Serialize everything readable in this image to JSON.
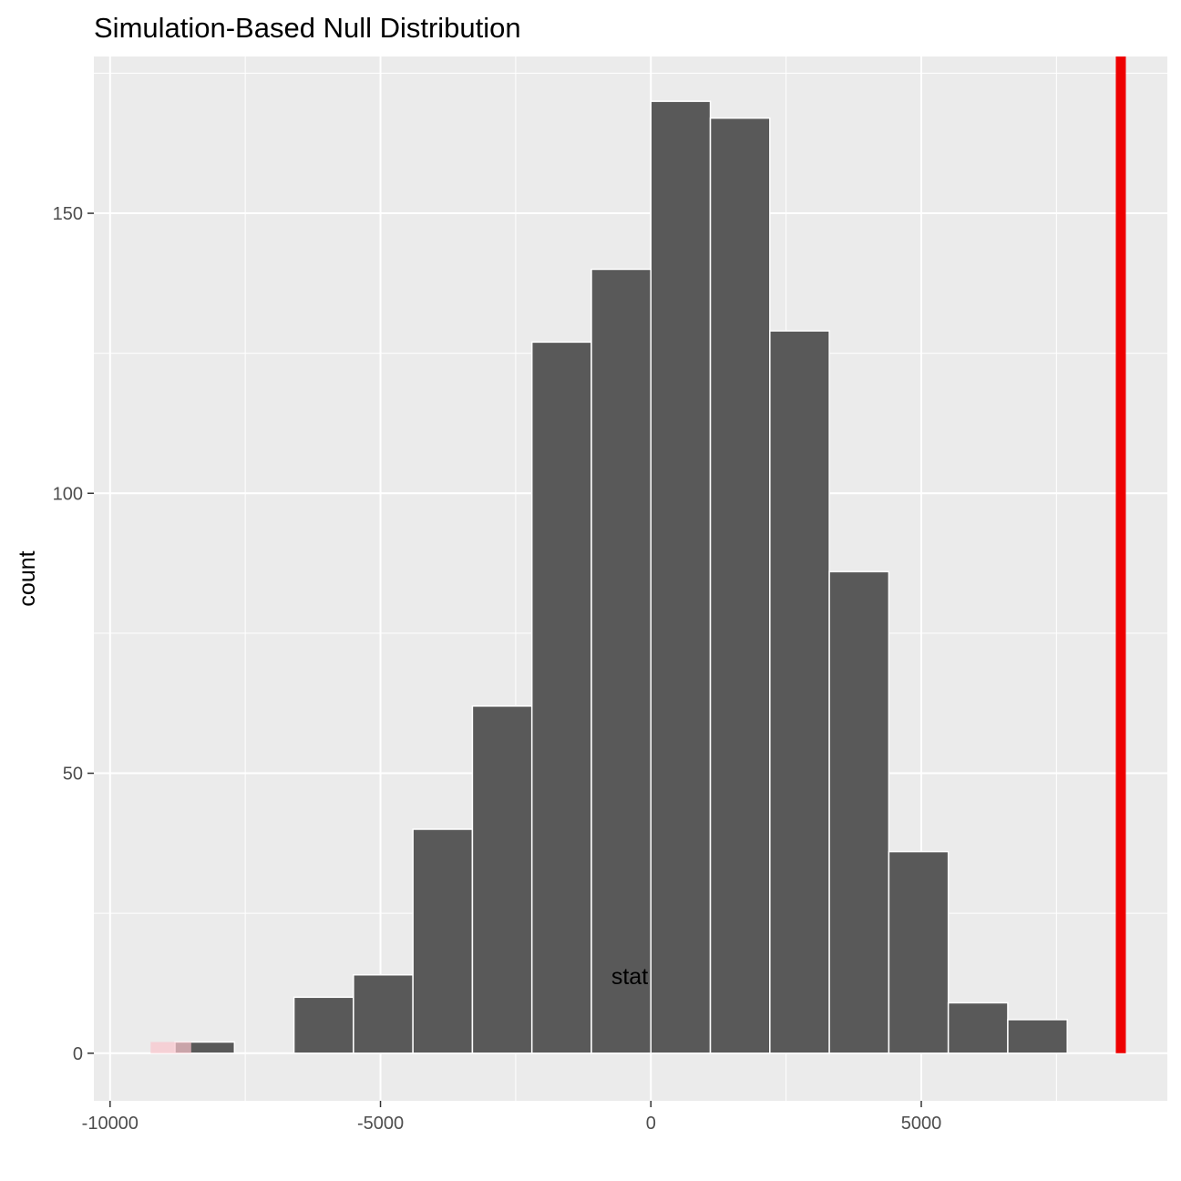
{
  "chart_data": {
    "type": "bar",
    "title": "Simulation-Based Null Distribution",
    "xlabel": "stat",
    "ylabel": "count",
    "xlim": [
      -10300,
      9550
    ],
    "ylim": [
      -8.5,
      178
    ],
    "x_ticks": [
      {
        "value": -10000,
        "label": "-10000"
      },
      {
        "value": -5000,
        "label": "-5000"
      },
      {
        "value": 0,
        "label": "0"
      },
      {
        "value": 5000,
        "label": "5000"
      }
    ],
    "y_ticks": [
      {
        "value": 0,
        "label": "0"
      },
      {
        "value": 50,
        "label": "50"
      },
      {
        "value": 100,
        "label": "100"
      },
      {
        "value": 150,
        "label": "150"
      }
    ],
    "bin_width": 1100,
    "bins": [
      {
        "center": -8250,
        "count": 2
      },
      {
        "center": -7150,
        "count": 0
      },
      {
        "center": -6050,
        "count": 10
      },
      {
        "center": -4950,
        "count": 14
      },
      {
        "center": -3850,
        "count": 40
      },
      {
        "center": -2750,
        "count": 62
      },
      {
        "center": -1650,
        "count": 127
      },
      {
        "center": -550,
        "count": 140
      },
      {
        "center": 550,
        "count": 170
      },
      {
        "center": 1650,
        "count": 167
      },
      {
        "center": 2750,
        "count": 129
      },
      {
        "center": 3850,
        "count": 86
      },
      {
        "center": 4950,
        "count": 36
      },
      {
        "center": 6050,
        "count": 9
      },
      {
        "center": 7150,
        "count": 6
      }
    ],
    "observed_stat": 8690,
    "shaded_region": {
      "from": -9250,
      "to": -8500
    },
    "grid": true,
    "colors": {
      "panel": "#ebebeb",
      "grid": "#ffffff",
      "bar_fill": "#595959",
      "bar_outline": "#ffffff",
      "observed_line": "#ee0000",
      "shade": "#f9c4cc"
    }
  }
}
